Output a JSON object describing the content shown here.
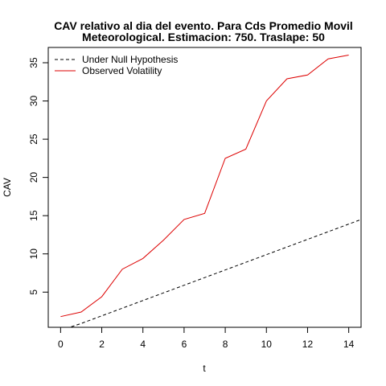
{
  "chart_data": {
    "type": "line",
    "title": "CAV relativo al dia del evento. Para Cds Promedio Movil",
    "subtitle": "Meteorological. Estimacion: 750. Traslape: 50",
    "xlabel": "t",
    "ylabel": "CAV",
    "xlim": [
      -0.6,
      14.6
    ],
    "ylim": [
      0.4,
      37.0
    ],
    "x_ticks": [
      0,
      2,
      4,
      6,
      8,
      10,
      12,
      14
    ],
    "y_ticks": [
      5,
      10,
      15,
      20,
      25,
      30,
      35
    ],
    "grid": false,
    "legend_position": "top-left",
    "series": [
      {
        "name": "Under Null Hypothesis",
        "style": "dashed",
        "color": "#000000",
        "x": [
          0,
          1,
          2,
          3,
          4,
          5,
          6,
          7,
          8,
          9,
          10,
          11,
          12,
          13,
          14,
          15
        ],
        "values": [
          0,
          0.9,
          1.9,
          2.9,
          3.9,
          4.9,
          5.9,
          6.9,
          7.9,
          8.9,
          9.9,
          10.9,
          11.9,
          12.9,
          13.9,
          14.9
        ]
      },
      {
        "name": "Observed Volatility",
        "style": "solid",
        "color": "#dd0000",
        "x": [
          0,
          1,
          2,
          3,
          4,
          5,
          6,
          7,
          8,
          9,
          10,
          11,
          12,
          13,
          14
        ],
        "values": [
          1.8,
          2.4,
          4.4,
          8.0,
          9.4,
          11.8,
          14.5,
          15.3,
          22.5,
          23.7,
          30.0,
          32.9,
          33.4,
          35.5,
          36.0
        ]
      }
    ]
  }
}
